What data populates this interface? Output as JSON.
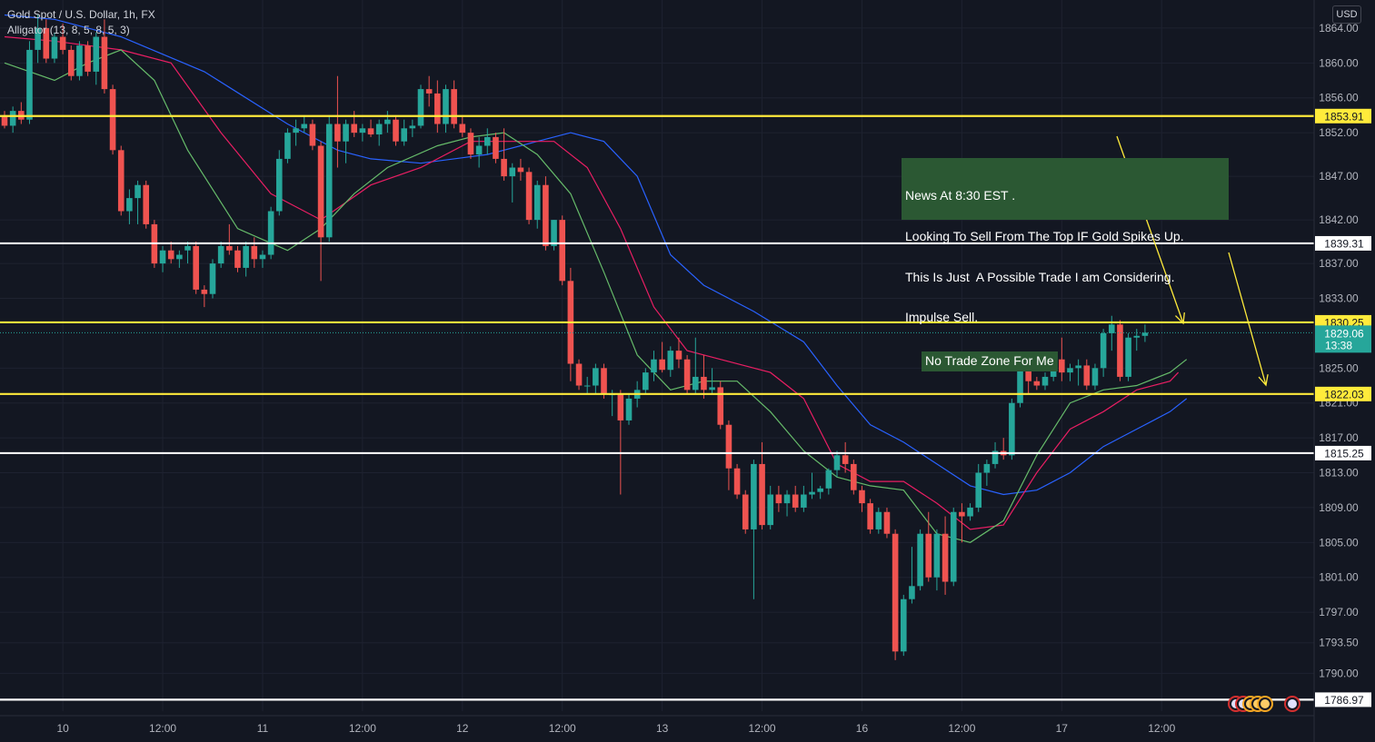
{
  "header": {
    "title": "Gold Spot / U.S. Dollar, 1h, FX",
    "indicator": "Alligator (13, 8, 5, 8, 5, 3)"
  },
  "currency_label": "USD",
  "annotations": {
    "news_lines": [
      "News At 8:30 EST .",
      "Looking To Sell From The Top IF Gold Spikes Up.",
      "This Is Just  A Possible Trade I am Considering.",
      "Impulse Sell."
    ],
    "no_trade_zone": "No Trade Zone For Me"
  },
  "colors": {
    "background": "#131722",
    "bull": "#26a69a",
    "bear": "#ef5350",
    "jaw": "#2962ff",
    "teeth": "#e91e63",
    "lips": "#66bb6a",
    "level_yellow": "#ffeb3b",
    "level_white": "#ffffff",
    "annotation_bg": "#2b5833"
  },
  "chart_data": {
    "type": "candlestick",
    "title": "Gold Spot / U.S. Dollar, 1h, FX",
    "y_unit": "USD",
    "ylim": [
      1786.3,
      1866.1
    ],
    "y_ticks": [
      "1864.00",
      "1860.00",
      "1856.00",
      "1852.00",
      "1847.00",
      "1842.00",
      "1837.00",
      "1833.00",
      "1825.00",
      "1821.00",
      "1817.00",
      "1813.00",
      "1809.00",
      "1805.00",
      "1801.00",
      "1797.00",
      "1793.50",
      "1790.00"
    ],
    "x_ticks": [
      {
        "bar": 7,
        "label": "10"
      },
      {
        "bar": 19,
        "label": "12:00"
      },
      {
        "bar": 31,
        "label": "11"
      },
      {
        "bar": 43,
        "label": "12:00"
      },
      {
        "bar": 55,
        "label": "12"
      },
      {
        "bar": 67,
        "label": "12:00"
      },
      {
        "bar": 79,
        "label": "13"
      },
      {
        "bar": 91,
        "label": "12:00"
      },
      {
        "bar": 103,
        "label": "16"
      },
      {
        "bar": 115,
        "label": "12:00"
      },
      {
        "bar": 127,
        "label": "17"
      },
      {
        "bar": 139,
        "label": "12:00"
      }
    ],
    "levels": [
      {
        "value": 1853.91,
        "label": "1853.91",
        "color": "yellow"
      },
      {
        "value": 1839.31,
        "label": "1839.31",
        "color": "white"
      },
      {
        "value": 1830.25,
        "label": "1830.25",
        "color": "yellow"
      },
      {
        "value": 1822.03,
        "label": "1822.03",
        "color": "yellow"
      },
      {
        "value": 1815.25,
        "label": "1815.25",
        "color": "white"
      },
      {
        "value": 1786.97,
        "label": "1786.97",
        "color": "white"
      }
    ],
    "current_price": {
      "value": 1829.06,
      "label": "1829.06",
      "countdown": "13:38"
    },
    "candles": [
      [
        1854.0,
        1854.5,
        1852.5,
        1852.8
      ],
      [
        1852.8,
        1855.0,
        1852.0,
        1854.5
      ],
      [
        1854.5,
        1855.5,
        1853.0,
        1853.5
      ],
      [
        1853.5,
        1862.5,
        1853.0,
        1861.5
      ],
      [
        1861.5,
        1865.5,
        1860.0,
        1864.0
      ],
      [
        1864.0,
        1865.0,
        1860.0,
        1860.5
      ],
      [
        1860.5,
        1863.5,
        1860.0,
        1863.0
      ],
      [
        1863.0,
        1864.5,
        1861.0,
        1861.5
      ],
      [
        1861.5,
        1862.0,
        1858.0,
        1858.5
      ],
      [
        1858.5,
        1862.5,
        1858.0,
        1862.0
      ],
      [
        1862.0,
        1862.5,
        1858.5,
        1859.0
      ],
      [
        1859.0,
        1863.5,
        1857.5,
        1863.0
      ],
      [
        1863.0,
        1865.0,
        1856.5,
        1857.0
      ],
      [
        1857.0,
        1857.5,
        1849.5,
        1850.0
      ],
      [
        1850.0,
        1850.5,
        1842.5,
        1843.0
      ],
      [
        1843.0,
        1845.5,
        1841.5,
        1844.5
      ],
      [
        1844.5,
        1846.5,
        1841.5,
        1846.0
      ],
      [
        1846.0,
        1846.5,
        1841.0,
        1841.5
      ],
      [
        1841.5,
        1842.0,
        1836.5,
        1837.0
      ],
      [
        1837.0,
        1839.0,
        1836.0,
        1838.5
      ],
      [
        1838.5,
        1839.5,
        1837.0,
        1837.5
      ],
      [
        1837.5,
        1838.5,
        1836.5,
        1838.0
      ],
      [
        1838.5,
        1839.5,
        1837.0,
        1839.0
      ],
      [
        1839.0,
        1839.5,
        1833.5,
        1834.0
      ],
      [
        1834.0,
        1834.5,
        1832.0,
        1833.5
      ],
      [
        1833.5,
        1837.5,
        1833.0,
        1837.0
      ],
      [
        1837.0,
        1839.5,
        1836.5,
        1839.0
      ],
      [
        1839.0,
        1841.5,
        1838.0,
        1838.5
      ],
      [
        1838.5,
        1839.0,
        1836.0,
        1836.5
      ],
      [
        1836.5,
        1839.5,
        1835.5,
        1839.0
      ],
      [
        1839.0,
        1840.0,
        1836.5,
        1837.5
      ],
      [
        1837.5,
        1838.5,
        1836.5,
        1838.0
      ],
      [
        1838.0,
        1843.5,
        1837.5,
        1843.0
      ],
      [
        1843.0,
        1850.0,
        1842.5,
        1849.0
      ],
      [
        1849.0,
        1852.5,
        1848.5,
        1852.0
      ],
      [
        1852.0,
        1853.5,
        1850.5,
        1852.5
      ],
      [
        1852.5,
        1854.0,
        1852.0,
        1853.0
      ],
      [
        1853.0,
        1853.5,
        1850.0,
        1850.5
      ],
      [
        1850.5,
        1851.0,
        1835.0,
        1840.0
      ],
      [
        1840.0,
        1854.0,
        1839.5,
        1853.0
      ],
      [
        1853.0,
        1858.5,
        1848.0,
        1851.0
      ],
      [
        1851.0,
        1853.5,
        1848.5,
        1853.0
      ],
      [
        1853.0,
        1854.5,
        1851.5,
        1852.0
      ],
      [
        1852.0,
        1853.0,
        1851.0,
        1852.5
      ],
      [
        1852.5,
        1853.5,
        1851.5,
        1851.8
      ],
      [
        1851.8,
        1853.5,
        1850.5,
        1853.0
      ],
      [
        1853.0,
        1854.5,
        1852.0,
        1853.5
      ],
      [
        1853.5,
        1854.0,
        1850.5,
        1851.0
      ],
      [
        1851.0,
        1853.5,
        1850.5,
        1852.5
      ],
      [
        1852.5,
        1853.5,
        1851.5,
        1852.8
      ],
      [
        1852.8,
        1857.5,
        1852.5,
        1857.0
      ],
      [
        1857.0,
        1858.5,
        1855.0,
        1856.5
      ],
      [
        1856.5,
        1858.0,
        1852.0,
        1853.0
      ],
      [
        1853.0,
        1857.5,
        1852.0,
        1857.0
      ],
      [
        1857.0,
        1858.0,
        1852.5,
        1853.0
      ],
      [
        1853.0,
        1854.0,
        1851.5,
        1852.0
      ],
      [
        1852.0,
        1852.5,
        1849.0,
        1849.5
      ],
      [
        1849.5,
        1851.5,
        1848.0,
        1850.5
      ],
      [
        1850.5,
        1852.5,
        1849.5,
        1851.5
      ],
      [
        1851.5,
        1852.0,
        1848.5,
        1849.0
      ],
      [
        1849.0,
        1852.5,
        1846.5,
        1847.0
      ],
      [
        1847.0,
        1848.5,
        1844.0,
        1848.0
      ],
      [
        1848.0,
        1849.0,
        1846.5,
        1847.5
      ],
      [
        1847.5,
        1848.0,
        1841.5,
        1842.0
      ],
      [
        1842.0,
        1846.5,
        1841.0,
        1846.0
      ],
      [
        1846.0,
        1847.0,
        1838.5,
        1839.0
      ],
      [
        1839.0,
        1842.0,
        1838.5,
        1842.0
      ],
      [
        1842.0,
        1842.5,
        1834.5,
        1835.0
      ],
      [
        1835.0,
        1836.5,
        1823.5,
        1825.5
      ],
      [
        1825.5,
        1826.0,
        1822.5,
        1823.0
      ],
      [
        1823.0,
        1824.0,
        1822.0,
        1823.0
      ],
      [
        1823.0,
        1825.5,
        1822.0,
        1825.0
      ],
      [
        1825.0,
        1825.5,
        1821.5,
        1822.0
      ],
      [
        1822.0,
        1822.5,
        1819.5,
        1822.0
      ],
      [
        1822.0,
        1822.5,
        1810.5,
        1819.0
      ],
      [
        1819.0,
        1822.0,
        1818.5,
        1821.5
      ],
      [
        1821.5,
        1823.5,
        1820.5,
        1822.5
      ],
      [
        1822.5,
        1825.0,
        1822.0,
        1824.5
      ],
      [
        1824.5,
        1827.0,
        1823.5,
        1826.0
      ],
      [
        1826.0,
        1828.0,
        1824.5,
        1824.8
      ],
      [
        1824.8,
        1827.5,
        1824.0,
        1827.0
      ],
      [
        1827.0,
        1828.5,
        1825.0,
        1826.0
      ],
      [
        1826.0,
        1826.5,
        1822.0,
        1822.5
      ],
      [
        1822.5,
        1828.5,
        1822.0,
        1824.0
      ],
      [
        1824.0,
        1826.5,
        1821.5,
        1822.5
      ],
      [
        1822.5,
        1825.0,
        1822.0,
        1822.8
      ],
      [
        1822.8,
        1823.5,
        1818.0,
        1818.5
      ],
      [
        1818.5,
        1819.0,
        1811.0,
        1813.5
      ],
      [
        1813.5,
        1814.0,
        1810.0,
        1810.5
      ],
      [
        1810.5,
        1811.0,
        1806.0,
        1806.5
      ],
      [
        1806.5,
        1814.5,
        1798.5,
        1814.0
      ],
      [
        1814.0,
        1816.5,
        1806.5,
        1807.0
      ],
      [
        1807.0,
        1811.5,
        1806.5,
        1810.5
      ],
      [
        1810.5,
        1811.5,
        1808.5,
        1809.5
      ],
      [
        1809.5,
        1811.0,
        1808.0,
        1810.5
      ],
      [
        1810.5,
        1811.5,
        1808.5,
        1809.0
      ],
      [
        1809.0,
        1811.5,
        1808.5,
        1810.5
      ],
      [
        1810.5,
        1813.0,
        1810.0,
        1810.8
      ],
      [
        1810.8,
        1811.5,
        1810.0,
        1811.2
      ],
      [
        1811.2,
        1813.5,
        1810.5,
        1813.3
      ],
      [
        1813.3,
        1815.5,
        1812.5,
        1815.0
      ],
      [
        1815.0,
        1816.5,
        1813.0,
        1814.0
      ],
      [
        1814.0,
        1814.5,
        1810.5,
        1811.0
      ],
      [
        1811.0,
        1811.5,
        1808.5,
        1809.5
      ],
      [
        1809.5,
        1810.0,
        1806.0,
        1806.5
      ],
      [
        1806.5,
        1809.0,
        1806.0,
        1808.5
      ],
      [
        1808.5,
        1809.0,
        1805.5,
        1806.0
      ],
      [
        1806.0,
        1806.5,
        1791.5,
        1792.5
      ],
      [
        1792.5,
        1799.0,
        1792.0,
        1798.5
      ],
      [
        1798.5,
        1804.5,
        1798.0,
        1800.0
      ],
      [
        1800.0,
        1806.5,
        1799.5,
        1806.0
      ],
      [
        1806.0,
        1808.5,
        1800.5,
        1801.0
      ],
      [
        1801.0,
        1806.5,
        1799.5,
        1806.0
      ],
      [
        1806.0,
        1808.0,
        1799.0,
        1800.5
      ],
      [
        1800.5,
        1809.0,
        1800.0,
        1808.5
      ],
      [
        1808.5,
        1809.5,
        1805.0,
        1808.0
      ],
      [
        1808.0,
        1809.5,
        1807.5,
        1809.0
      ],
      [
        1809.0,
        1814.0,
        1808.5,
        1813.0
      ],
      [
        1813.0,
        1814.5,
        1811.5,
        1814.0
      ],
      [
        1814.0,
        1816.5,
        1813.5,
        1815.5
      ],
      [
        1815.5,
        1817.0,
        1814.5,
        1815.0
      ],
      [
        1815.0,
        1821.5,
        1814.5,
        1821.0
      ],
      [
        1821.0,
        1826.5,
        1820.5,
        1826.0
      ],
      [
        1826.0,
        1826.5,
        1822.0,
        1823.5
      ],
      [
        1823.5,
        1824.0,
        1822.5,
        1823.0
      ],
      [
        1823.0,
        1824.5,
        1822.5,
        1824.0
      ],
      [
        1824.0,
        1826.5,
        1823.5,
        1826.0
      ],
      [
        1826.0,
        1828.5,
        1823.5,
        1824.5
      ],
      [
        1824.5,
        1825.5,
        1823.5,
        1825.0
      ],
      [
        1825.0,
        1826.0,
        1823.0,
        1825.3
      ],
      [
        1825.3,
        1826.0,
        1822.5,
        1823.0
      ],
      [
        1823.0,
        1825.5,
        1822.5,
        1825.0
      ],
      [
        1825.0,
        1829.5,
        1824.0,
        1829.0
      ],
      [
        1829.0,
        1831.0,
        1827.0,
        1830.0
      ],
      [
        1830.0,
        1830.5,
        1823.5,
        1824.0
      ],
      [
        1824.0,
        1829.0,
        1823.5,
        1828.5
      ],
      [
        1828.5,
        1829.5,
        1827.0,
        1828.7
      ],
      [
        1828.7,
        1830.0,
        1828.0,
        1829.06
      ]
    ],
    "alligator": {
      "jaw": [
        [
          0,
          1865.5
        ],
        [
          6,
          1865.0
        ],
        [
          14,
          1863.0
        ],
        [
          24,
          1859.0
        ],
        [
          34,
          1853.0
        ],
        [
          40,
          1850.0
        ],
        [
          44,
          1849.0
        ],
        [
          50,
          1848.5
        ],
        [
          58,
          1849.5
        ],
        [
          64,
          1851.0
        ],
        [
          68,
          1852.0
        ],
        [
          72,
          1851.0
        ],
        [
          76,
          1847.0
        ],
        [
          80,
          1838.0
        ],
        [
          84,
          1834.5
        ],
        [
          90,
          1831.5
        ],
        [
          96,
          1828.0
        ],
        [
          100,
          1823.0
        ],
        [
          104,
          1818.5
        ],
        [
          108,
          1816.5
        ],
        [
          112,
          1814.0
        ],
        [
          116,
          1811.5
        ],
        [
          120,
          1810.5
        ],
        [
          124,
          1811.0
        ],
        [
          128,
          1813.0
        ],
        [
          132,
          1816.0
        ],
        [
          136,
          1818.0
        ],
        [
          140,
          1820.0
        ],
        [
          142,
          1821.5
        ]
      ],
      "teeth": [
        [
          0,
          1863.0
        ],
        [
          6,
          1862.5
        ],
        [
          14,
          1861.5
        ],
        [
          20,
          1860.0
        ],
        [
          26,
          1852.0
        ],
        [
          32,
          1845.0
        ],
        [
          38,
          1842.0
        ],
        [
          44,
          1846.0
        ],
        [
          50,
          1848.0
        ],
        [
          56,
          1851.0
        ],
        [
          62,
          1851.0
        ],
        [
          66,
          1851.0
        ],
        [
          70,
          1848.0
        ],
        [
          74,
          1841.0
        ],
        [
          78,
          1832.0
        ],
        [
          82,
          1827.0
        ],
        [
          86,
          1826.0
        ],
        [
          92,
          1824.5
        ],
        [
          96,
          1821.5
        ],
        [
          100,
          1814.0
        ],
        [
          104,
          1812.0
        ],
        [
          108,
          1812.0
        ],
        [
          112,
          1809.5
        ],
        [
          116,
          1806.5
        ],
        [
          120,
          1807.0
        ],
        [
          124,
          1813.0
        ],
        [
          128,
          1818.0
        ],
        [
          132,
          1820.0
        ],
        [
          136,
          1822.5
        ],
        [
          140,
          1823.5
        ],
        [
          141,
          1824.5
        ]
      ],
      "lips": [
        [
          0,
          1860.0
        ],
        [
          6,
          1858.0
        ],
        [
          10,
          1860.0
        ],
        [
          14,
          1861.5
        ],
        [
          18,
          1858.0
        ],
        [
          22,
          1850.0
        ],
        [
          28,
          1841.0
        ],
        [
          34,
          1838.5
        ],
        [
          38,
          1841.0
        ],
        [
          42,
          1845.0
        ],
        [
          46,
          1848.0
        ],
        [
          52,
          1850.5
        ],
        [
          56,
          1851.5
        ],
        [
          60,
          1852.0
        ],
        [
          64,
          1849.5
        ],
        [
          68,
          1845.0
        ],
        [
          72,
          1836.0
        ],
        [
          76,
          1826.5
        ],
        [
          80,
          1822.5
        ],
        [
          84,
          1823.5
        ],
        [
          88,
          1823.5
        ],
        [
          92,
          1820.0
        ],
        [
          96,
          1815.5
        ],
        [
          100,
          1812.5
        ],
        [
          104,
          1811.5
        ],
        [
          108,
          1811.0
        ],
        [
          112,
          1806.0
        ],
        [
          116,
          1805.0
        ],
        [
          120,
          1807.5
        ],
        [
          124,
          1815.0
        ],
        [
          128,
          1821.0
        ],
        [
          132,
          1822.5
        ],
        [
          136,
          1823.0
        ],
        [
          140,
          1824.5
        ],
        [
          142,
          1826.0
        ]
      ]
    }
  }
}
